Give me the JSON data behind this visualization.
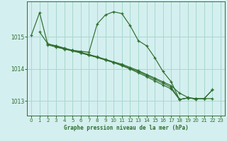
{
  "title": "Graphe pression niveau de la mer (hPa)",
  "background_color": "#d4efef",
  "grid_color": "#a8d8cc",
  "line_color": "#2d6e2d",
  "xlim": [
    -0.5,
    23.5
  ],
  "ylim": [
    1012.55,
    1016.1
  ],
  "yticks": [
    1013,
    1014,
    1015
  ],
  "xticks": [
    0,
    1,
    2,
    3,
    4,
    5,
    6,
    7,
    8,
    9,
    10,
    11,
    12,
    13,
    14,
    15,
    16,
    17,
    18,
    19,
    20,
    21,
    22,
    23
  ],
  "series1_x": [
    0,
    1,
    2,
    3,
    4,
    5,
    6,
    7,
    8,
    9,
    10,
    11,
    12,
    13,
    14,
    15,
    16,
    17,
    18,
    19,
    20,
    21,
    22
  ],
  "series1_y": [
    1015.05,
    1015.75,
    1014.75,
    1014.68,
    1014.62,
    1014.58,
    1014.55,
    1014.52,
    1015.4,
    1015.68,
    1015.78,
    1015.72,
    1015.35,
    1014.88,
    1014.72,
    1014.35,
    1013.92,
    1013.6,
    1013.05,
    1013.1,
    1013.08,
    1013.08,
    1013.08
  ],
  "series2_x": [
    1,
    2,
    3,
    4,
    5,
    6,
    7,
    8,
    9,
    10,
    11,
    12,
    13,
    14,
    15,
    16,
    17,
    18,
    19,
    20
  ],
  "series2_y": [
    1015.15,
    1014.78,
    1014.72,
    1014.65,
    1014.58,
    1014.52,
    1014.45,
    1014.38,
    1014.3,
    1014.22,
    1014.15,
    1014.05,
    1013.95,
    1013.83,
    1013.72,
    1013.6,
    1013.48,
    1013.25,
    1013.12,
    1013.05
  ],
  "series3_x": [
    2,
    3,
    4,
    5,
    6,
    7,
    8,
    9,
    10,
    11,
    12,
    13,
    14,
    15,
    16,
    17,
    18,
    19,
    20,
    21,
    22
  ],
  "series3_y": [
    1014.78,
    1014.7,
    1014.62,
    1014.56,
    1014.5,
    1014.43,
    1014.36,
    1014.28,
    1014.2,
    1014.12,
    1014.02,
    1013.92,
    1013.8,
    1013.68,
    1013.56,
    1013.43,
    1013.05,
    1013.1,
    1013.08,
    1013.08,
    1013.35
  ],
  "series4_x": [
    3,
    4,
    5,
    6,
    7,
    8,
    9,
    10,
    11,
    12,
    13,
    14,
    15,
    16,
    17,
    18,
    19,
    20,
    21,
    22
  ],
  "series4_y": [
    1014.72,
    1014.64,
    1014.57,
    1014.5,
    1014.43,
    1014.36,
    1014.28,
    1014.2,
    1014.1,
    1014.0,
    1013.88,
    1013.76,
    1013.63,
    1013.5,
    1013.38,
    1013.05,
    1013.1,
    1013.08,
    1013.08,
    1013.35
  ]
}
